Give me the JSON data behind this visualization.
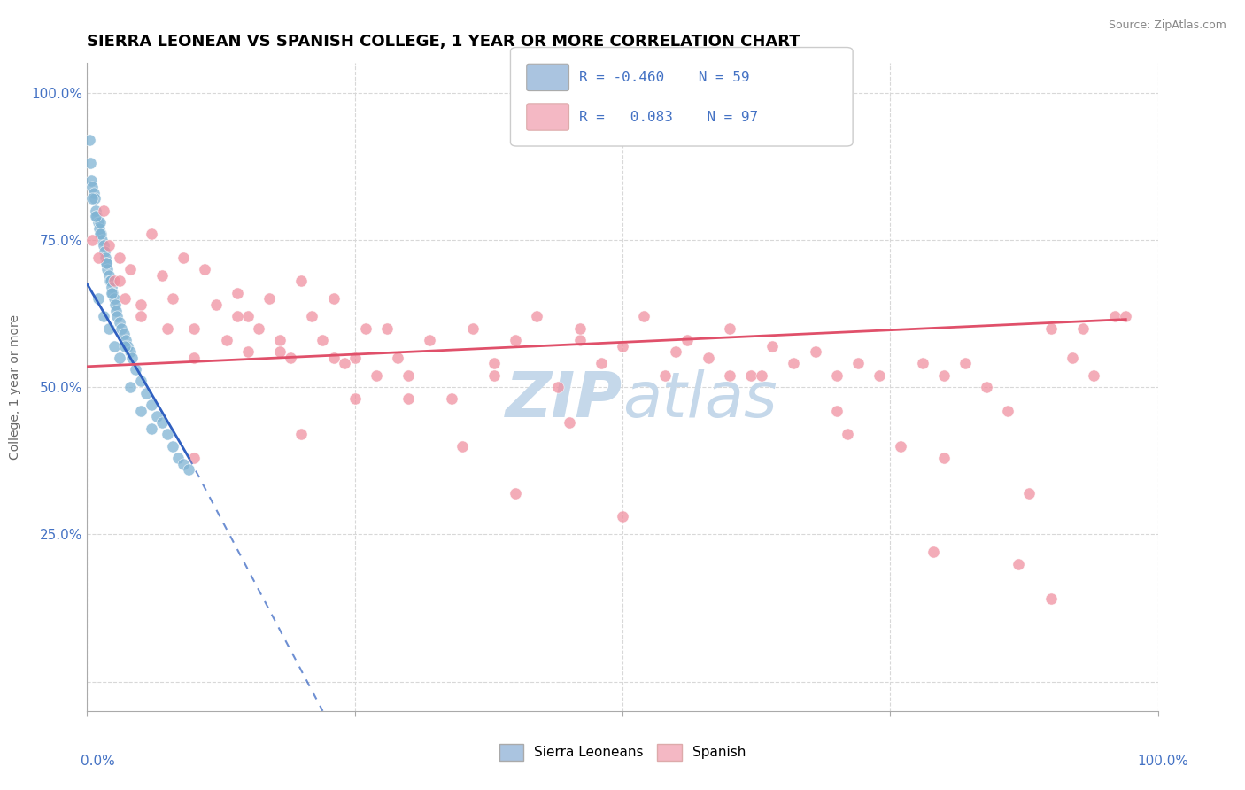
{
  "title": "SIERRA LEONEAN VS SPANISH COLLEGE, 1 YEAR OR MORE CORRELATION CHART",
  "source_text": "Source: ZipAtlas.com",
  "ylabel": "College, 1 year or more",
  "blue_color": "#aac4e0",
  "blue_dot_color": "#7fb3d3",
  "pink_color": "#f4b8c4",
  "pink_dot_color": "#f090a0",
  "blue_line_color": "#3060c0",
  "pink_line_color": "#e0506a",
  "watermark_color": "#c5d8ea",
  "background_color": "#ffffff",
  "grid_color": "#d8d8d8",
  "title_fontsize": 13,
  "blue_scatter_x": [
    0.2,
    0.3,
    0.4,
    0.5,
    0.6,
    0.7,
    0.8,
    0.9,
    1.0,
    1.1,
    1.2,
    1.3,
    1.4,
    1.5,
    1.6,
    1.7,
    1.8,
    1.9,
    2.0,
    2.1,
    2.2,
    2.3,
    2.4,
    2.5,
    2.6,
    2.7,
    2.8,
    3.0,
    3.2,
    3.4,
    3.6,
    3.8,
    4.0,
    4.2,
    4.5,
    5.0,
    5.5,
    6.0,
    6.5,
    7.0,
    7.5,
    8.0,
    8.5,
    9.0,
    9.5,
    1.0,
    1.5,
    2.0,
    2.5,
    3.0,
    4.0,
    5.0,
    6.0,
    0.5,
    0.8,
    1.2,
    1.8,
    2.3,
    3.5
  ],
  "blue_scatter_y": [
    92,
    88,
    85,
    84,
    83,
    82,
    80,
    79,
    78,
    77,
    78,
    76,
    75,
    74,
    73,
    72,
    71,
    70,
    69,
    68,
    68,
    67,
    66,
    65,
    64,
    63,
    62,
    61,
    60,
    59,
    58,
    57,
    56,
    55,
    53,
    51,
    49,
    47,
    45,
    44,
    42,
    40,
    38,
    37,
    36,
    65,
    62,
    60,
    57,
    55,
    50,
    46,
    43,
    82,
    79,
    76,
    71,
    66,
    57
  ],
  "pink_scatter_x": [
    0.5,
    1.0,
    1.5,
    2.0,
    2.5,
    3.0,
    3.5,
    4.0,
    5.0,
    6.0,
    7.0,
    8.0,
    9.0,
    10.0,
    11.0,
    12.0,
    13.0,
    14.0,
    15.0,
    16.0,
    17.0,
    18.0,
    19.0,
    20.0,
    21.0,
    22.0,
    23.0,
    24.0,
    25.0,
    26.0,
    27.0,
    28.0,
    29.0,
    30.0,
    32.0,
    34.0,
    36.0,
    38.0,
    40.0,
    42.0,
    44.0,
    46.0,
    48.0,
    50.0,
    52.0,
    54.0,
    56.0,
    58.0,
    60.0,
    62.0,
    64.0,
    66.0,
    68.0,
    70.0,
    72.0,
    74.0,
    76.0,
    78.0,
    80.0,
    82.0,
    84.0,
    86.0,
    88.0,
    90.0,
    92.0,
    94.0,
    96.0,
    3.0,
    5.0,
    7.5,
    10.0,
    14.0,
    18.0,
    23.0,
    30.0,
    38.0,
    46.0,
    55.0,
    63.0,
    71.0,
    79.0,
    87.0,
    93.0,
    97.0,
    15.0,
    25.0,
    35.0,
    45.0,
    60.0,
    70.0,
    80.0,
    90.0,
    50.0,
    40.0,
    20.0,
    10.0
  ],
  "pink_scatter_y": [
    75,
    72,
    80,
    74,
    68,
    72,
    65,
    70,
    64,
    76,
    69,
    65,
    72,
    60,
    70,
    64,
    58,
    66,
    62,
    60,
    65,
    58,
    55,
    68,
    62,
    58,
    65,
    54,
    55,
    60,
    52,
    60,
    55,
    52,
    58,
    48,
    60,
    54,
    58,
    62,
    50,
    58,
    54,
    57,
    62,
    52,
    58,
    55,
    60,
    52,
    57,
    54,
    56,
    52,
    54,
    52,
    40,
    54,
    52,
    54,
    50,
    46,
    32,
    60,
    55,
    52,
    62,
    68,
    62,
    60,
    55,
    62,
    56,
    55,
    48,
    52,
    60,
    56,
    52,
    42,
    22,
    20,
    60,
    62,
    56,
    48,
    40,
    44,
    52,
    46,
    38,
    14,
    28,
    32,
    42,
    38
  ],
  "blue_trend_x0": 0.0,
  "blue_trend_y0": 67.5,
  "blue_trend_x1": 9.5,
  "blue_trend_y1": 38.0,
  "blue_dashed_x1": 22.0,
  "blue_dashed_y1": -5.0,
  "pink_trend_x0": 0.0,
  "pink_trend_y0": 53.5,
  "pink_trend_x1": 97.0,
  "pink_trend_y1": 61.5,
  "xlim": [
    0,
    100
  ],
  "ylim": [
    -5,
    105
  ],
  "ytick_vals": [
    0,
    25,
    50,
    75,
    100
  ],
  "ytick_labels": [
    "",
    "25.0%",
    "50.0%",
    "75.0%",
    "100.0%"
  ]
}
